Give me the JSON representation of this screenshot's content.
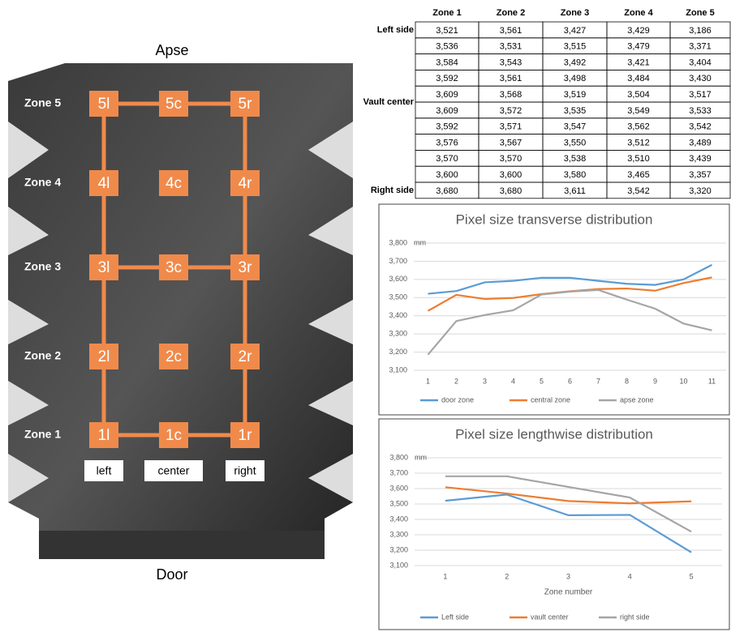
{
  "diagram": {
    "top_label": "Apse",
    "bottom_label": "Door",
    "zones": [
      "Zone 5",
      "Zone 4",
      "Zone 3",
      "Zone 2",
      "Zone 1"
    ],
    "nodes": [
      "5l",
      "5c",
      "5r",
      "4l",
      "4c",
      "4r",
      "3l",
      "3c",
      "3r",
      "2l",
      "2c",
      "2r",
      "1l",
      "1c",
      "1r"
    ],
    "columns": [
      "left",
      "center",
      "right"
    ]
  },
  "table": {
    "header": [
      "Zone 1",
      "Zone 2",
      "Zone 3",
      "Zone 4",
      "Zone 5"
    ],
    "rows": [
      {
        "label": "Left side",
        "values": [
          "3,521",
          "3,561",
          "3,427",
          "3,429",
          "3,186"
        ]
      },
      {
        "values": [
          "3,536",
          "3,531",
          "3,515",
          "3,479",
          "3,371"
        ]
      },
      {
        "values": [
          "3,584",
          "3,543",
          "3,492",
          "3,421",
          "3,404"
        ]
      },
      {
        "values": [
          "3,592",
          "3,561",
          "3,498",
          "3,484",
          "3,430"
        ]
      },
      {
        "label": "Vault center",
        "values": [
          "3,609",
          "3,568",
          "3,519",
          "3,504",
          "3,517"
        ]
      },
      {
        "values": [
          "3,609",
          "3,572",
          "3,535",
          "3,549",
          "3,533"
        ]
      },
      {
        "values": [
          "3,592",
          "3,571",
          "3,547",
          "3,562",
          "3,542"
        ]
      },
      {
        "values": [
          "3,576",
          "3,567",
          "3,550",
          "3,512",
          "3,489"
        ]
      },
      {
        "values": [
          "3,570",
          "3,570",
          "3,538",
          "3,510",
          "3,439"
        ]
      },
      {
        "values": [
          "3,600",
          "3,600",
          "3,580",
          "3,465",
          "3,357"
        ]
      },
      {
        "label": "Right side",
        "values": [
          "3,680",
          "3,680",
          "3,611",
          "3,542",
          "3,320"
        ]
      }
    ]
  },
  "chart_data": [
    {
      "type": "line",
      "title": "Pixel size transverse distribution",
      "ylabel": "mm",
      "x": [
        1,
        2,
        3,
        4,
        5,
        6,
        7,
        8,
        9,
        10,
        11
      ],
      "ylim": [
        3100,
        3800
      ],
      "yticks": [
        {
          "value": 3100,
          "label": "3,100"
        },
        {
          "value": 3200,
          "label": "3,200"
        },
        {
          "value": 3300,
          "label": "3,300"
        },
        {
          "value": 3400,
          "label": "3,400"
        },
        {
          "value": 3500,
          "label": "3,500"
        },
        {
          "value": 3600,
          "label": "3,600"
        },
        {
          "value": 3700,
          "label": "3,700"
        },
        {
          "value": 3800,
          "label": "3,800"
        }
      ],
      "grid": true,
      "series": [
        {
          "name": "door zone",
          "color": "#5b9bd5",
          "values": [
            3521,
            3536,
            3584,
            3592,
            3609,
            3609,
            3592,
            3576,
            3570,
            3600,
            3680
          ]
        },
        {
          "name": "central zone",
          "color": "#ed7d31",
          "values": [
            3427,
            3515,
            3492,
            3498,
            3519,
            3535,
            3547,
            3550,
            3538,
            3580,
            3611
          ]
        },
        {
          "name": "apse zone",
          "color": "#a5a5a5",
          "values": [
            3186,
            3371,
            3404,
            3430,
            3517,
            3533,
            3542,
            3489,
            3439,
            3357,
            3320
          ]
        }
      ]
    },
    {
      "type": "line",
      "title": "Pixel size lengthwise distribution",
      "ylabel": "mm",
      "xlabel": "Zone number",
      "x": [
        1,
        2,
        3,
        4,
        5
      ],
      "ylim": [
        3100,
        3800
      ],
      "yticks": [
        {
          "value": 3100,
          "label": "3,100"
        },
        {
          "value": 3200,
          "label": "3,200"
        },
        {
          "value": 3300,
          "label": "3,300"
        },
        {
          "value": 3400,
          "label": "3,400"
        },
        {
          "value": 3500,
          "label": "3,500"
        },
        {
          "value": 3600,
          "label": "3,600"
        },
        {
          "value": 3700,
          "label": "3,700"
        },
        {
          "value": 3800,
          "label": "3,800"
        }
      ],
      "grid": true,
      "series": [
        {
          "name": "Left side",
          "color": "#5b9bd5",
          "values": [
            3521,
            3561,
            3427,
            3429,
            3186
          ]
        },
        {
          "name": "vault center",
          "color": "#ed7d31",
          "values": [
            3609,
            3568,
            3519,
            3504,
            3517
          ]
        },
        {
          "name": "right side",
          "color": "#a5a5a5",
          "values": [
            3680,
            3680,
            3611,
            3542,
            3320
          ]
        }
      ]
    }
  ]
}
